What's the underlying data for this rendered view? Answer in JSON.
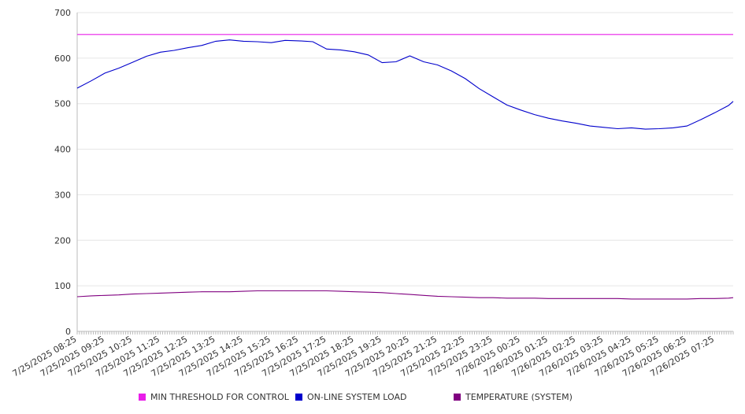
{
  "chart_data": {
    "type": "line",
    "title": "",
    "xlabel": "",
    "ylabel": "",
    "ylim": [
      0,
      700
    ],
    "yticks": [
      0,
      100,
      200,
      300,
      400,
      500,
      600,
      700
    ],
    "grid": true,
    "legend_position": "bottom",
    "x_tick_labels": [
      "7/25/2025 08:25",
      "7/25/2025 09:25",
      "7/25/2025 10:25",
      "7/25/2025 11:25",
      "7/25/2025 12:25",
      "7/25/2025 13:25",
      "7/25/2025 14:25",
      "7/25/2025 15:25",
      "7/25/2025 16:25",
      "7/25/2025 17:25",
      "7/25/2025 18:25",
      "7/25/2025 19:25",
      "7/25/2025 20:25",
      "7/25/2025 21:25",
      "7/25/2025 22:25",
      "7/25/2025 23:25",
      "7/26/2025 00:25",
      "7/26/2025 01:25",
      "7/26/2025 02:25",
      "7/26/2025 03:25",
      "7/26/2025 04:25",
      "7/26/2025 05:25",
      "7/26/2025 06:25",
      "7/26/2025 07:25"
    ],
    "x": [
      "7/25/2025 08:25",
      "7/25/2025 08:55",
      "7/25/2025 09:25",
      "7/25/2025 09:55",
      "7/25/2025 10:25",
      "7/25/2025 10:55",
      "7/25/2025 11:25",
      "7/25/2025 11:55",
      "7/25/2025 12:25",
      "7/25/2025 12:55",
      "7/25/2025 13:25",
      "7/25/2025 13:55",
      "7/25/2025 14:25",
      "7/25/2025 14:55",
      "7/25/2025 15:25",
      "7/25/2025 15:55",
      "7/25/2025 16:25",
      "7/25/2025 16:55",
      "7/25/2025 17:25",
      "7/25/2025 17:55",
      "7/25/2025 18:25",
      "7/25/2025 18:55",
      "7/25/2025 19:25",
      "7/25/2025 19:55",
      "7/25/2025 20:25",
      "7/25/2025 20:55",
      "7/25/2025 21:25",
      "7/25/2025 21:55",
      "7/25/2025 22:25",
      "7/25/2025 22:55",
      "7/25/2025 23:25",
      "7/25/2025 23:55",
      "7/26/2025 00:25",
      "7/26/2025 00:55",
      "7/26/2025 01:25",
      "7/26/2025 01:55",
      "7/26/2025 02:25",
      "7/26/2025 02:55",
      "7/26/2025 03:25",
      "7/26/2025 03:55",
      "7/26/2025 04:25",
      "7/26/2025 04:55",
      "7/26/2025 05:25",
      "7/26/2025 05:55",
      "7/26/2025 06:25",
      "7/26/2025 06:55",
      "7/26/2025 07:25",
      "7/26/2025 07:55",
      "7/26/2025 08:05"
    ],
    "series": [
      {
        "name": "MIN THRESHOLD FOR CONTROL",
        "color": "#e91ee9",
        "values": [
          652,
          652,
          652,
          652,
          652,
          652,
          652,
          652,
          652,
          652,
          652,
          652,
          652,
          652,
          652,
          652,
          652,
          652,
          652,
          652,
          652,
          652,
          652,
          652,
          652,
          652,
          652,
          652,
          652,
          652,
          652,
          652,
          652,
          652,
          652,
          652,
          652,
          652,
          652,
          652,
          652,
          652,
          652,
          652,
          652,
          652,
          652,
          652,
          652
        ]
      },
      {
        "name": "ON-LINE SYSTEM LOAD",
        "color": "#0000cc",
        "values": [
          534,
          550,
          567,
          578,
          591,
          604,
          613,
          617,
          623,
          628,
          637,
          640,
          637,
          636,
          634,
          639,
          638,
          636,
          620,
          618,
          614,
          607,
          590,
          592,
          605,
          592,
          585,
          572,
          555,
          533,
          515,
          497,
          486,
          476,
          468,
          462,
          457,
          451,
          448,
          445,
          447,
          444,
          445,
          447,
          451,
          465,
          480,
          496,
          505
        ]
      },
      {
        "name": "TEMPERATURE (SYSTEM)",
        "color": "#800080",
        "values": [
          76,
          78,
          79,
          80,
          82,
          83,
          84,
          85,
          86,
          87,
          87,
          87,
          88,
          89,
          89,
          89,
          89,
          89,
          89,
          88,
          87,
          86,
          85,
          83,
          81,
          79,
          77,
          76,
          75,
          74,
          74,
          73,
          73,
          73,
          72,
          72,
          72,
          72,
          72,
          72,
          71,
          71,
          71,
          71,
          71,
          72,
          72,
          73,
          74
        ]
      }
    ]
  }
}
